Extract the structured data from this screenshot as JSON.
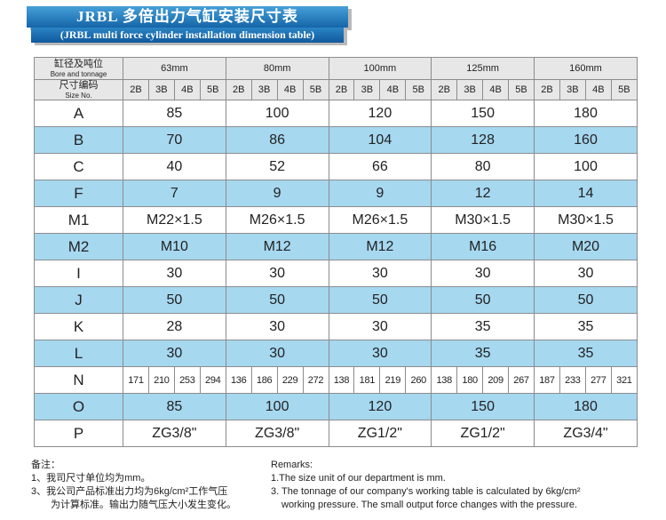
{
  "title": {
    "zh": "JRBL 多倍出力气缸安装尺寸表",
    "en": "(JRBL multi force cylinder installation dimension table)"
  },
  "table": {
    "header": {
      "col1_line1": "缸径及吨位",
      "col1_line2": "Bore and tonnage",
      "col2_line1": "尺寸编码",
      "col2_line2": "Size No.",
      "bores": [
        "63mm",
        "80mm",
        "100mm",
        "125mm",
        "160mm"
      ],
      "size_codes": [
        "2B",
        "3B",
        "4B",
        "5B"
      ]
    },
    "rows": [
      {
        "label": "A",
        "type": "merged",
        "values": [
          "85",
          "100",
          "120",
          "150",
          "180"
        ]
      },
      {
        "label": "B",
        "type": "merged",
        "values": [
          "70",
          "86",
          "104",
          "128",
          "160"
        ]
      },
      {
        "label": "C",
        "type": "merged",
        "values": [
          "40",
          "52",
          "66",
          "80",
          "100"
        ]
      },
      {
        "label": "F",
        "type": "merged",
        "values": [
          "7",
          "9",
          "9",
          "12",
          "14"
        ]
      },
      {
        "label": "M1",
        "type": "merged",
        "values": [
          "M22×1.5",
          "M26×1.5",
          "M26×1.5",
          "M30×1.5",
          "M30×1.5"
        ]
      },
      {
        "label": "M2",
        "type": "merged",
        "values": [
          "M10",
          "M12",
          "M12",
          "M16",
          "M20"
        ]
      },
      {
        "label": "I",
        "type": "merged",
        "values": [
          "30",
          "30",
          "30",
          "30",
          "30"
        ]
      },
      {
        "label": "J",
        "type": "merged",
        "values": [
          "50",
          "50",
          "50",
          "50",
          "50"
        ]
      },
      {
        "label": "K",
        "type": "merged",
        "values": [
          "28",
          "30",
          "30",
          "35",
          "35"
        ]
      },
      {
        "label": "L",
        "type": "merged",
        "values": [
          "30",
          "30",
          "30",
          "35",
          "35"
        ]
      },
      {
        "label": "N",
        "type": "split",
        "values": [
          [
            "171",
            "210",
            "253",
            "294"
          ],
          [
            "136",
            "186",
            "229",
            "272"
          ],
          [
            "138",
            "181",
            "219",
            "260"
          ],
          [
            "138",
            "180",
            "209",
            "267"
          ],
          [
            "187",
            "233",
            "277",
            "321"
          ]
        ]
      },
      {
        "label": "O",
        "type": "merged",
        "values": [
          "85",
          "100",
          "120",
          "150",
          "180"
        ]
      },
      {
        "label": "P",
        "type": "merged",
        "values": [
          "ZG3/8\"",
          "ZG3/8\"",
          "ZG1/2\"",
          "ZG1/2\"",
          "ZG3/4\""
        ]
      }
    ]
  },
  "notes": {
    "zh": {
      "title": "备注：",
      "line1": "1、我司尺寸单位均为mm。",
      "line3a": "3、我公司产品标准出力均为6kg/cm²工作气压",
      "line3b": "为计算标准。输出力随气压大小发生变化。"
    },
    "en": {
      "title": "Remarks:",
      "line1": "1.The size unit of our department is mm.",
      "line3a": "3. The tonnage of our company's working table is calculated by 6kg/cm²",
      "line3b": "working pressure. The small output force changes with the pressure."
    }
  },
  "colors": {
    "banner_top": "#46a0d8",
    "banner_bottom": "#1565a8",
    "row_blue": "#a6d8f0",
    "header_bg": "#e7e7e7",
    "border": "#8c8c8c"
  }
}
